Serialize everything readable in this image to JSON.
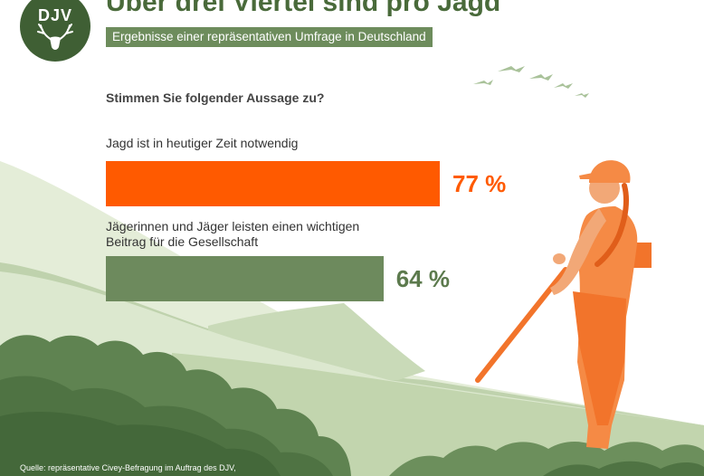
{
  "logo": {
    "text": "DJV"
  },
  "title": "Über drei Viertel sind pro Jagd",
  "subtitle": "Ergebnisse einer repräsentativen Umfrage in Deutschland",
  "question": "Stimmen Sie folgender Aussage zu?",
  "source": "Quelle: repräsentative Civey-Befragung im Auftrag des DJV,",
  "colors": {
    "orange": "#ff5a00",
    "green": "#6d8a5d",
    "dark_green": "#3f5f34"
  },
  "chart_data": {
    "type": "bar",
    "orientation": "horizontal",
    "title": "Über drei Viertel sind pro Jagd",
    "subtitle": "Ergebnisse einer repräsentativen Umfrage in Deutschland",
    "question": "Stimmen Sie folgender Aussage zu?",
    "unit": "%",
    "xlim": [
      0,
      100
    ],
    "categories": [
      "Jagd ist in heutiger Zeit notwendig",
      "Jägerinnen und Jäger leisten einen wichtigen Beitrag für die Gesellschaft"
    ],
    "values": [
      77,
      64
    ],
    "value_labels": [
      "77 %",
      "64 %"
    ],
    "bar_colors": [
      "#ff5a00",
      "#6d8a5d"
    ],
    "grid": false,
    "legend": "none"
  }
}
